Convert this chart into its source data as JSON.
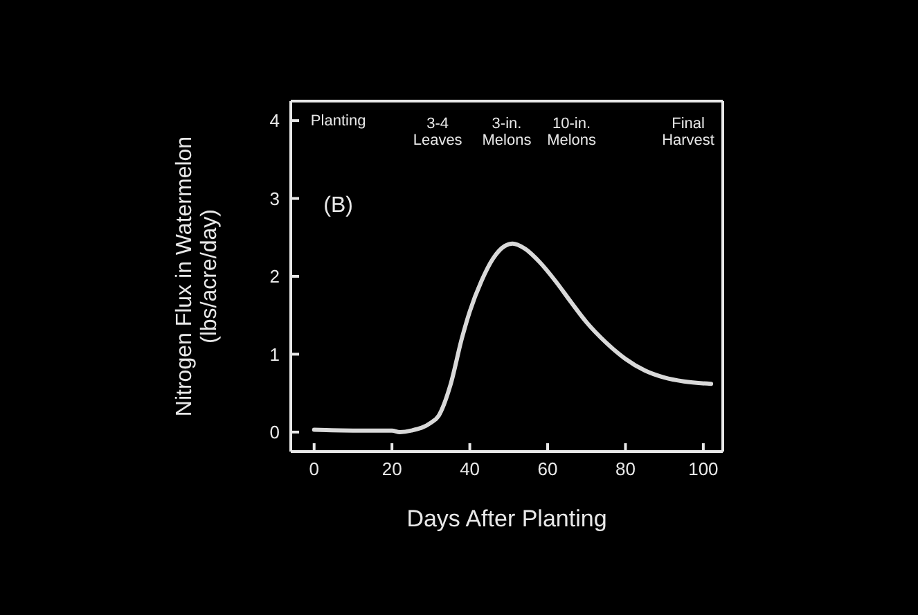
{
  "chart_data": {
    "type": "line",
    "xlabel": "Days After Planting",
    "ylabel": "Nitrogen Flux in Watermelon\n(lbs/acre/day)",
    "x": [
      0,
      10,
      20,
      22,
      25,
      30,
      32,
      35,
      38,
      40,
      43,
      46,
      49,
      51,
      54,
      58,
      62,
      66,
      70,
      75,
      80,
      85,
      90,
      95,
      102
    ],
    "series": [
      {
        "color": "#d9d9d9",
        "values": [
          0.03,
          0.02,
          0.02,
          0.0,
          0.02,
          0.12,
          0.21,
          0.6,
          1.21,
          1.55,
          1.94,
          2.23,
          2.39,
          2.42,
          2.36,
          2.18,
          1.94,
          1.67,
          1.41,
          1.15,
          0.94,
          0.79,
          0.7,
          0.65,
          0.62
        ]
      }
    ],
    "xlim": [
      -6,
      105
    ],
    "ylim": [
      -0.25,
      4.25
    ],
    "xticks": [
      0,
      20,
      40,
      60,
      80,
      100
    ],
    "yticks": [
      0,
      1,
      2,
      3,
      4
    ],
    "annotations": [
      "Planting",
      "3-4\nLeaves",
      "3-in.\nMelons",
      "10-in.\nMelons",
      "Final\nHarvest",
      "(B)"
    ],
    "grid": false,
    "legend": false,
    "marker": "none",
    "line_style": "solid"
  }
}
